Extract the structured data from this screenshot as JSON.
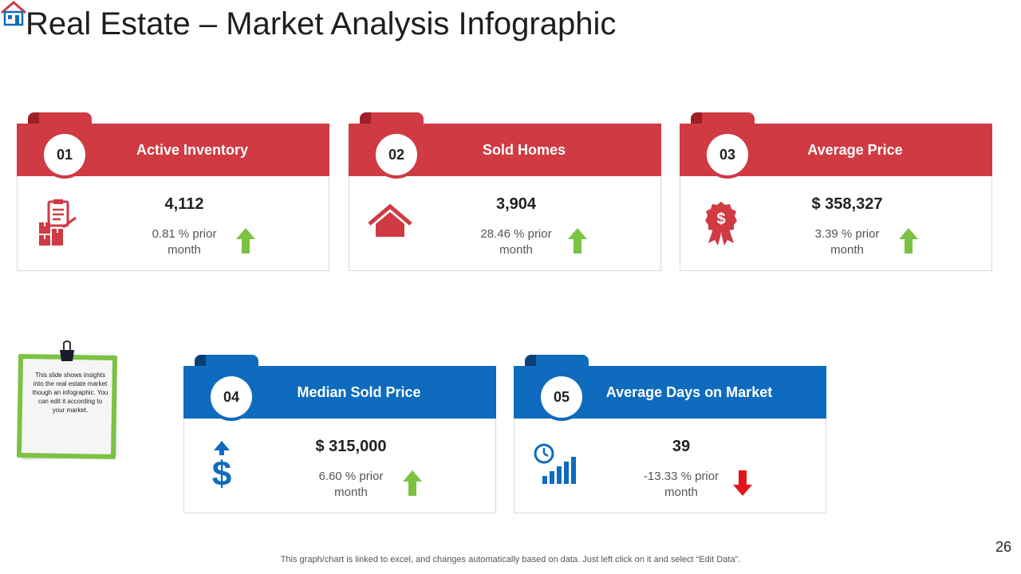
{
  "slide": {
    "title": "Real Estate – Market Analysis Infographic",
    "footer": "This graph/chart is linked to excel,  and changes automatically based on data. Just left click on it and select “Edit Data”.",
    "page_number": "26"
  },
  "note": {
    "text": "This slide shows insights into the real estate market though an infographic. You can edit it according to your market."
  },
  "cards": [
    {
      "number": "01",
      "title": "Active Inventory",
      "value": "4,112",
      "change": "0.81 % prior month",
      "trend": "up",
      "icon": "inventory-boxes-icon",
      "color": "#cf3a43"
    },
    {
      "number": "02",
      "title": "Sold Homes",
      "value": "3,904",
      "change": "28.46 % prior month",
      "trend": "up",
      "icon": "house-icon",
      "color": "#cf3a43"
    },
    {
      "number": "03",
      "title": "Average Price",
      "value": "$ 358,327",
      "change": "3.39 % prior month",
      "trend": "up",
      "icon": "dollar-badge-icon",
      "color": "#cf3a43"
    },
    {
      "number": "04",
      "title": "Median Sold Price",
      "value": "$ 315,000",
      "change": "6.60 % prior month",
      "trend": "up",
      "icon": "dollar-up-icon",
      "color": "#0e6bbd"
    },
    {
      "number": "05",
      "title": "Average Days on Market",
      "value": "39",
      "change": "-13.33 % prior month",
      "trend": "down",
      "icon": "clock-bars-icon",
      "color": "#0e6bbd"
    }
  ],
  "colors": {
    "up_arrow": "#7cc242",
    "down_arrow": "#e3151b",
    "red_theme": "#cf3a43",
    "blue_theme": "#0e6bbd"
  }
}
